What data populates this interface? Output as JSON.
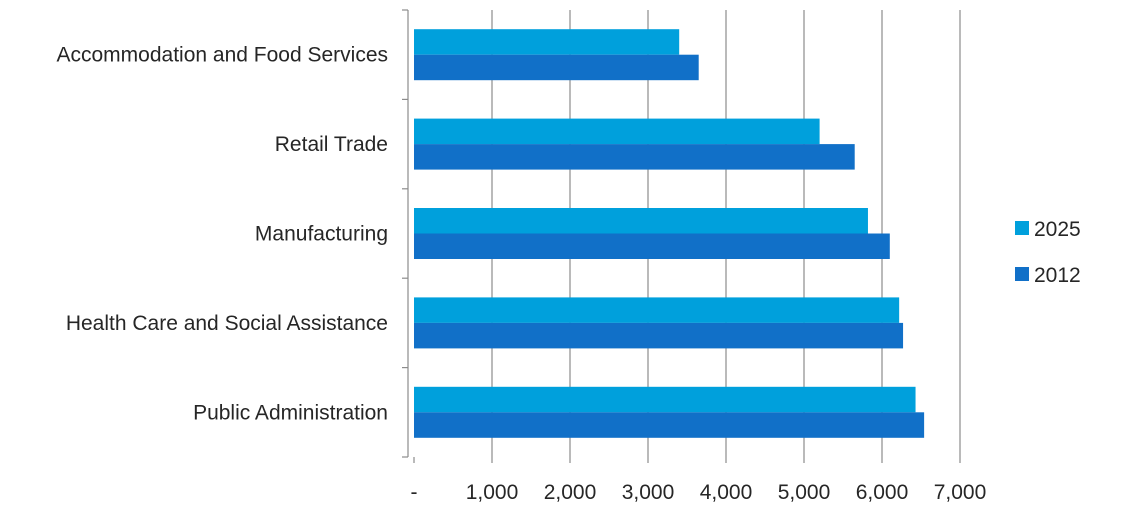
{
  "chart_data": {
    "type": "bar",
    "orientation": "horizontal",
    "categories": [
      "Accommodation and Food Services",
      "Retail Trade",
      "Manufacturing",
      "Health Care and Social Assistance",
      "Public Administration"
    ],
    "series": [
      {
        "name": "2025",
        "color": "#00a0dc",
        "values": [
          3400,
          5200,
          5820,
          6220,
          6430
        ]
      },
      {
        "name": "2012",
        "color": "#1170c8",
        "values": [
          3650,
          5650,
          6100,
          6270,
          6540
        ]
      }
    ],
    "xlim": [
      0,
      7000
    ],
    "xticks": [
      0,
      1000,
      2000,
      3000,
      4000,
      5000,
      6000,
      7000
    ],
    "xtick_labels": [
      "-",
      "1,000",
      "2,000",
      "3,000",
      "4,000",
      "5,000",
      "6,000",
      "7,000"
    ],
    "title": "",
    "xlabel": "",
    "ylabel": "",
    "grid": "vertical",
    "legend_position": "right",
    "legend_order": [
      "2025",
      "2012"
    ],
    "colors": {
      "grid": "#8c8c8c",
      "axis": "#8c8c8c",
      "text": "#262626"
    }
  }
}
